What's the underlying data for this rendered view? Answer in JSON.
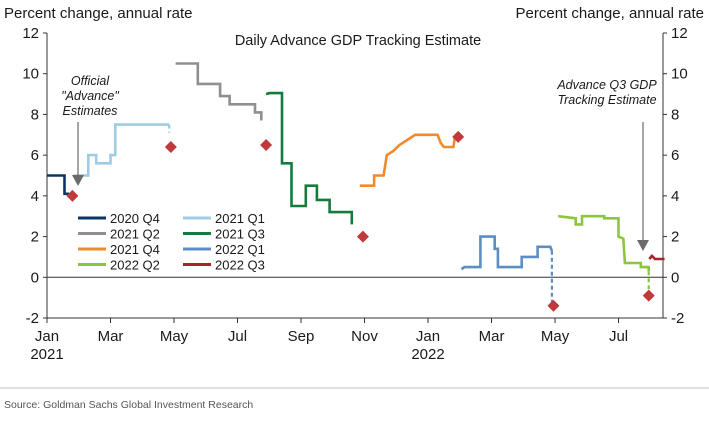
{
  "chart_data": {
    "type": "line",
    "title": "Daily Advance GDP Tracking Estimate",
    "ylabel_left": "Percent change, annual rate",
    "ylabel_right": "Percent change, annual rate",
    "ylim": [
      -2,
      12
    ],
    "yticks": [
      -2,
      0,
      2,
      4,
      6,
      8,
      10,
      12
    ],
    "xlim": [
      0,
      19.4
    ],
    "x_unit": "months since Jan 1, 2021",
    "xticks": [
      {
        "x": 0,
        "label": "Jan",
        "sub": "2021"
      },
      {
        "x": 2,
        "label": "Mar",
        "sub": ""
      },
      {
        "x": 4,
        "label": "May",
        "sub": ""
      },
      {
        "x": 6,
        "label": "Jul",
        "sub": ""
      },
      {
        "x": 8,
        "label": "Sep",
        "sub": ""
      },
      {
        "x": 10,
        "label": "Nov",
        "sub": ""
      },
      {
        "x": 12,
        "label": "Jan",
        "sub": "2022"
      },
      {
        "x": 14,
        "label": "Mar",
        "sub": ""
      },
      {
        "x": 16,
        "label": "May",
        "sub": ""
      },
      {
        "x": 18,
        "label": "Jul",
        "sub": ""
      }
    ],
    "series": [
      {
        "name": "2020 Q4",
        "color": "#0b3563",
        "points": [
          [
            0,
            5.0
          ],
          [
            0.55,
            5.0
          ],
          [
            0.55,
            4.1
          ],
          [
            0.7,
            4.1
          ]
        ],
        "dashed_tail": []
      },
      {
        "name": "2021 Q1",
        "color": "#9fcbe3",
        "points": [
          [
            0.85,
            5.0
          ],
          [
            1.3,
            5.0
          ],
          [
            1.3,
            6.0
          ],
          [
            1.55,
            6.0
          ],
          [
            1.55,
            5.6
          ],
          [
            2.0,
            5.6
          ],
          [
            2.0,
            6.0
          ],
          [
            2.15,
            6.0
          ],
          [
            2.15,
            7.5
          ],
          [
            3.85,
            7.5
          ]
        ],
        "dashed_tail": [
          [
            3.85,
            7.5
          ],
          [
            3.85,
            7.1
          ]
        ]
      },
      {
        "name": "2021 Q2",
        "color": "#8f8f8f",
        "points": [
          [
            4.05,
            10.5
          ],
          [
            4.75,
            10.5
          ],
          [
            4.75,
            9.5
          ],
          [
            5.45,
            9.5
          ],
          [
            5.45,
            8.9
          ],
          [
            5.75,
            8.9
          ],
          [
            5.75,
            8.5
          ],
          [
            6.55,
            8.5
          ],
          [
            6.55,
            8.1
          ],
          [
            6.75,
            8.1
          ],
          [
            6.75,
            7.7
          ]
        ],
        "dashed_tail": []
      },
      {
        "name": "2021 Q3",
        "color": "#157a3d",
        "points": [
          [
            6.9,
            9.0
          ],
          [
            7.0,
            9.05
          ],
          [
            7.4,
            9.05
          ],
          [
            7.4,
            5.6
          ],
          [
            7.7,
            5.6
          ],
          [
            7.7,
            3.5
          ],
          [
            8.15,
            3.5
          ],
          [
            8.15,
            4.5
          ],
          [
            8.5,
            4.5
          ],
          [
            8.5,
            3.8
          ],
          [
            8.9,
            3.8
          ],
          [
            8.9,
            3.2
          ],
          [
            9.6,
            3.2
          ],
          [
            9.6,
            2.6
          ]
        ],
        "dashed_tail": []
      },
      {
        "name": "2021 Q4",
        "color": "#f08a2b",
        "points": [
          [
            9.85,
            4.5
          ],
          [
            10.3,
            4.5
          ],
          [
            10.3,
            5.0
          ],
          [
            10.6,
            5.0
          ],
          [
            10.7,
            6.0
          ],
          [
            10.9,
            6.2
          ],
          [
            11.1,
            6.5
          ],
          [
            11.3,
            6.7
          ],
          [
            11.6,
            7.0
          ],
          [
            12.3,
            7.0
          ],
          [
            12.4,
            6.6
          ],
          [
            12.5,
            6.4
          ],
          [
            12.8,
            6.4
          ],
          [
            12.85,
            6.9
          ]
        ],
        "dashed_tail": []
      },
      {
        "name": "2022 Q1",
        "color": "#5b8ec4",
        "points": [
          [
            13.05,
            0.4
          ],
          [
            13.15,
            0.5
          ],
          [
            13.65,
            0.5
          ],
          [
            13.65,
            2.0
          ],
          [
            14.1,
            2.0
          ],
          [
            14.1,
            1.4
          ],
          [
            14.2,
            1.4
          ],
          [
            14.2,
            0.5
          ],
          [
            14.95,
            0.5
          ],
          [
            14.95,
            1.0
          ],
          [
            15.45,
            1.0
          ],
          [
            15.45,
            1.5
          ],
          [
            15.85,
            1.5
          ],
          [
            15.9,
            1.3
          ]
        ],
        "dashed_tail": [
          [
            15.9,
            1.3
          ],
          [
            15.9,
            -1.3
          ]
        ]
      },
      {
        "name": "2022 Q2",
        "color": "#8cc63e",
        "points": [
          [
            16.1,
            3.0
          ],
          [
            16.65,
            2.9
          ],
          [
            16.65,
            2.6
          ],
          [
            16.85,
            2.6
          ],
          [
            16.85,
            3.0
          ],
          [
            17.55,
            3.0
          ],
          [
            17.55,
            2.9
          ],
          [
            18.0,
            2.9
          ],
          [
            18.0,
            2.0
          ],
          [
            18.15,
            1.9
          ],
          [
            18.2,
            0.7
          ],
          [
            18.7,
            0.7
          ],
          [
            18.7,
            0.5
          ],
          [
            18.95,
            0.5
          ],
          [
            18.95,
            0.3
          ]
        ],
        "dashed_tail": [
          [
            18.95,
            0.3
          ],
          [
            18.95,
            -0.8
          ]
        ]
      },
      {
        "name": "2022 Q3",
        "color": "#a3262a",
        "points": [
          [
            18.97,
            0.9
          ],
          [
            19.05,
            1.05
          ],
          [
            19.15,
            0.9
          ],
          [
            19.45,
            0.9
          ]
        ],
        "dashed_tail": []
      }
    ],
    "official_estimates": {
      "color": "#c0393b",
      "points": [
        [
          0.8,
          4.0
        ],
        [
          3.9,
          6.4
        ],
        [
          6.9,
          6.5
        ],
        [
          9.95,
          2.0
        ],
        [
          12.95,
          6.9
        ],
        [
          15.95,
          -1.4
        ],
        [
          18.95,
          -0.9
        ]
      ]
    },
    "annotations": [
      {
        "text": [
          "Official",
          "\"Advance\"",
          "Estimates"
        ]
      },
      {
        "text": [
          "Advance Q3 GDP",
          "Tracking Estimate"
        ]
      }
    ],
    "legend": [
      "2020 Q4",
      "2021 Q1",
      "2021 Q2",
      "2021 Q3",
      "2021 Q4",
      "2022 Q1",
      "2022 Q2",
      "2022 Q3"
    ],
    "source": "Source: Goldman Sachs Global Investment Research"
  }
}
